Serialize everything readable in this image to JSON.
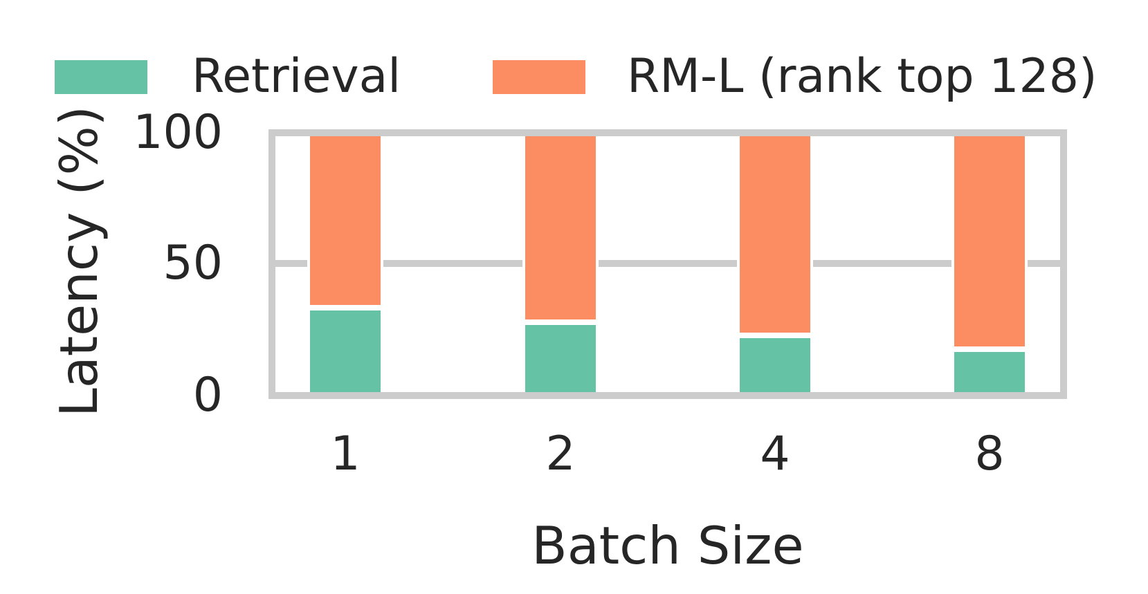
{
  "chart_data": {
    "type": "bar",
    "stacked": true,
    "title": "",
    "xlabel": "Batch Size",
    "ylabel": "Latency (%)",
    "categories": [
      "1",
      "2",
      "4",
      "8"
    ],
    "series": [
      {
        "name": "Retrieval",
        "color": "#66c2a5",
        "values": [
          33.5,
          28.0,
          23.0,
          17.5
        ]
      },
      {
        "name": "RM-L (rank top 128)",
        "color": "#fc8d62",
        "values": [
          66.5,
          72.0,
          77.0,
          82.5
        ]
      }
    ],
    "ylim": [
      0,
      100
    ],
    "ytick_labels": [
      "100",
      "50",
      "0"
    ],
    "grid": "single horizontal gridline at y=50",
    "legend_position": "top",
    "axis_color": "#cccccc",
    "text_color": "#262626"
  },
  "legend": {
    "items": [
      {
        "label": "Retrieval",
        "color": "#66c2a5"
      },
      {
        "label": "RM-L (rank top 128)",
        "color": "#fc8d62"
      }
    ]
  },
  "yticks": {
    "t100": "100",
    "t50": "50",
    "t0": "0"
  }
}
